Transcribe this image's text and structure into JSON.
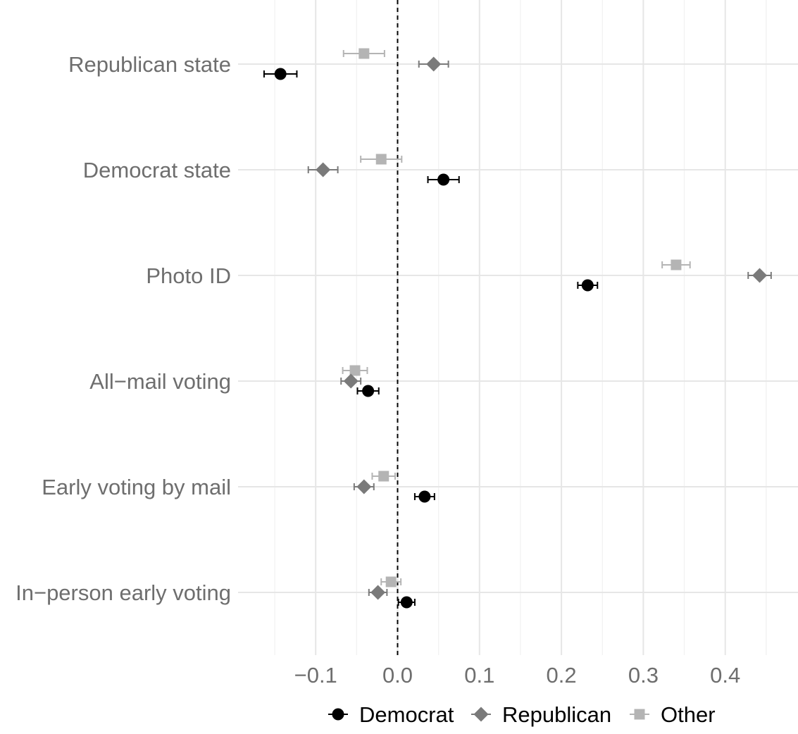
{
  "chart_data": {
    "type": "scatter",
    "categories": [
      "Republican state",
      "Democrat state",
      "Photo ID",
      "All−mail voting",
      "Early voting by mail",
      "In−person early voting"
    ],
    "x_ticks": [
      {
        "value": -0.1,
        "label": "−0.1"
      },
      {
        "value": 0.0,
        "label": "0.0"
      },
      {
        "value": 0.1,
        "label": "0.1"
      },
      {
        "value": 0.2,
        "label": "0.2"
      },
      {
        "value": 0.3,
        "label": "0.3"
      },
      {
        "value": 0.4,
        "label": "0.4"
      }
    ],
    "xlim": [
      -0.15,
      0.47
    ],
    "reference_line": 0.0,
    "series": [
      {
        "name": "Democrat",
        "color": "#000000",
        "marker": "circle",
        "points": [
          {
            "value": -0.143,
            "low": -0.163,
            "high": -0.123
          },
          {
            "value": 0.056,
            "low": 0.037,
            "high": 0.075
          },
          {
            "value": 0.232,
            "low": 0.22,
            "high": 0.244
          },
          {
            "value": -0.036,
            "low": -0.049,
            "high": -0.023
          },
          {
            "value": 0.033,
            "low": 0.021,
            "high": 0.045
          },
          {
            "value": 0.011,
            "low": 0.001,
            "high": 0.021
          }
        ]
      },
      {
        "name": "Republican",
        "color": "#7a7a7a",
        "marker": "diamond",
        "points": [
          {
            "value": 0.044,
            "low": 0.026,
            "high": 0.062
          },
          {
            "value": -0.091,
            "low": -0.109,
            "high": -0.073
          },
          {
            "value": 0.442,
            "low": 0.428,
            "high": 0.456
          },
          {
            "value": -0.057,
            "low": -0.069,
            "high": -0.045
          },
          {
            "value": -0.041,
            "low": -0.053,
            "high": -0.029
          },
          {
            "value": -0.024,
            "low": -0.035,
            "high": -0.013
          }
        ]
      },
      {
        "name": "Other",
        "color": "#b4b4b4",
        "marker": "square",
        "points": [
          {
            "value": -0.041,
            "low": -0.066,
            "high": -0.016
          },
          {
            "value": -0.02,
            "low": -0.045,
            "high": 0.005
          },
          {
            "value": 0.34,
            "low": 0.323,
            "high": 0.357
          },
          {
            "value": -0.052,
            "low": -0.067,
            "high": -0.037
          },
          {
            "value": -0.017,
            "low": -0.031,
            "high": -0.003
          },
          {
            "value": -0.008,
            "low": -0.02,
            "high": 0.004
          }
        ]
      }
    ],
    "grid": true,
    "legend_position": "bottom"
  }
}
